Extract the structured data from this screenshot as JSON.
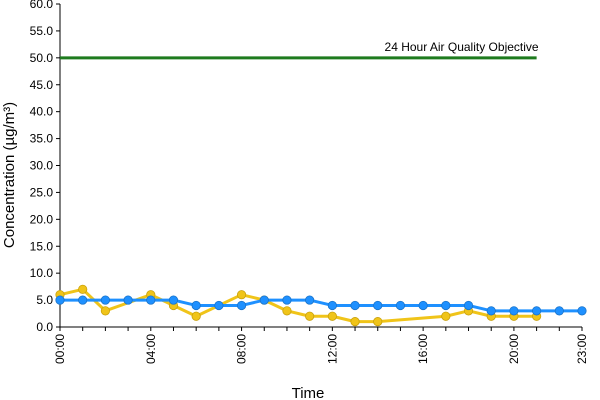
{
  "chart_data": {
    "type": "line",
    "xlabel": "Time",
    "ylabel": "Concentration (µg/m³)",
    "ylim": [
      0,
      60
    ],
    "yticks": [
      "0.0",
      "5.0",
      "10.0",
      "15.0",
      "20.0",
      "25.0",
      "30.0",
      "35.0",
      "40.0",
      "45.0",
      "50.0",
      "55.0",
      "60.0"
    ],
    "xlim": [
      0,
      23
    ],
    "xticks": [
      "00:00",
      "04:00",
      "08:00",
      "12:00",
      "16:00",
      "20:00",
      "23:00"
    ],
    "xtick_hours": [
      0,
      4,
      8,
      12,
      16,
      20,
      23
    ],
    "grid": false,
    "legend": "none",
    "objective": {
      "label": "24 Hour Air Quality Objective",
      "value": 50,
      "x_start": 0,
      "x_end": 21,
      "color": "#1e7b1e"
    },
    "series": [
      {
        "color": "#f0c419",
        "points": [
          [
            0,
            6
          ],
          [
            1,
            7
          ],
          [
            2,
            3
          ],
          [
            4,
            6
          ],
          [
            5,
            4
          ],
          [
            6,
            2
          ],
          [
            8,
            6
          ],
          [
            9,
            5
          ],
          [
            10,
            3
          ],
          [
            11,
            2
          ],
          [
            12,
            2
          ],
          [
            13,
            1
          ],
          [
            14,
            1
          ],
          [
            17,
            2
          ],
          [
            18,
            3
          ],
          [
            19,
            2
          ],
          [
            20,
            2
          ],
          [
            21,
            2
          ]
        ]
      },
      {
        "color": "#1e90ff",
        "points": [
          [
            0,
            5
          ],
          [
            1,
            5
          ],
          [
            2,
            5
          ],
          [
            3,
            5
          ],
          [
            4,
            5
          ],
          [
            5,
            5
          ],
          [
            6,
            4
          ],
          [
            7,
            4
          ],
          [
            8,
            4
          ],
          [
            9,
            5
          ],
          [
            10,
            5
          ],
          [
            11,
            5
          ],
          [
            12,
            4
          ],
          [
            13,
            4
          ],
          [
            14,
            4
          ],
          [
            15,
            4
          ],
          [
            16,
            4
          ],
          [
            17,
            4
          ],
          [
            18,
            4
          ],
          [
            19,
            3
          ],
          [
            20,
            3
          ],
          [
            21,
            3
          ],
          [
            22,
            3
          ],
          [
            23,
            3
          ]
        ]
      }
    ]
  }
}
